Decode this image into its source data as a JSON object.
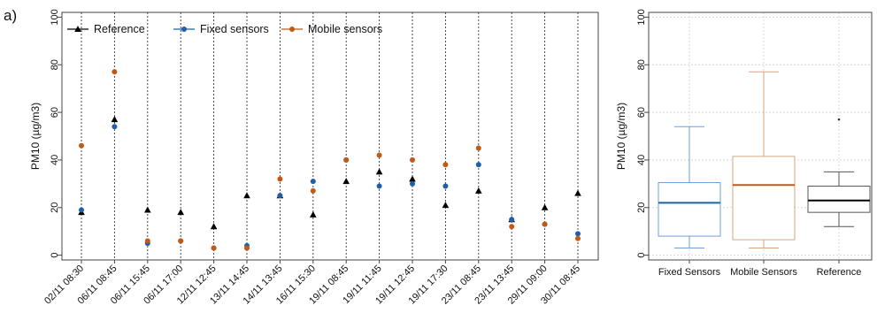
{
  "panel_label": "a)",
  "chart_data": [
    {
      "type": "scatter",
      "ylabel": "PM10 (µg/m3)",
      "ylim": [
        -2,
        102
      ],
      "yticks": [
        0,
        20,
        40,
        60,
        80,
        100
      ],
      "categories": [
        "02/11 08:30",
        "06/11 08:45",
        "06/11 15:45",
        "06/11 17:00",
        "12/11 12:45",
        "13/11 14:45",
        "14/11 13:45",
        "16/11 15:30",
        "19/11 08:45",
        "19/11 11:45",
        "19/11 12:45",
        "19/11 17:30",
        "23/11 08:45",
        "23/11 13:45",
        "29/11 09:00",
        "30/11 08:45"
      ],
      "legend_position": "top",
      "series": [
        {
          "name": "Reference",
          "marker": "triangle",
          "color": "#000000",
          "values": [
            18,
            57,
            19,
            18,
            12,
            25,
            25,
            17,
            31,
            35,
            32,
            21,
            27,
            15,
            20,
            26
          ]
        },
        {
          "name": "Fixed sensors",
          "marker": "circle",
          "color": "#1f5fa8",
          "values": [
            19,
            54,
            5,
            6,
            3,
            4,
            25,
            31,
            40,
            29,
            30,
            29,
            38,
            15,
            13,
            9
          ]
        },
        {
          "name": "Mobile sensors",
          "marker": "circle",
          "color": "#c05a14",
          "values": [
            46,
            77,
            6,
            6,
            3,
            3,
            32,
            27,
            40,
            42,
            40,
            38,
            45,
            12,
            13,
            7
          ]
        }
      ]
    },
    {
      "type": "box",
      "ylabel": "PM10 (µg/m3)",
      "ylim": [
        -2,
        102
      ],
      "yticks": [
        0,
        20,
        40,
        60,
        80,
        100
      ],
      "grid": true,
      "boxes": [
        {
          "label": "Fixed Sensors",
          "color": "#6fa0d6",
          "median_color": "#1f5fa8",
          "min": 3,
          "q1": 8,
          "median": 22,
          "q3": 30.5,
          "max": 54,
          "outliers": []
        },
        {
          "label": "Mobile Sensors",
          "color": "#d9a57e",
          "median_color": "#c05a14",
          "min": 3,
          "q1": 6.5,
          "median": 29.5,
          "q3": 41.5,
          "max": 77,
          "outliers": []
        },
        {
          "label": "Reference",
          "color": "#555555",
          "median_color": "#000000",
          "min": 12,
          "q1": 18,
          "median": 23,
          "q3": 29,
          "max": 35,
          "outliers": [
            57
          ]
        }
      ]
    }
  ]
}
